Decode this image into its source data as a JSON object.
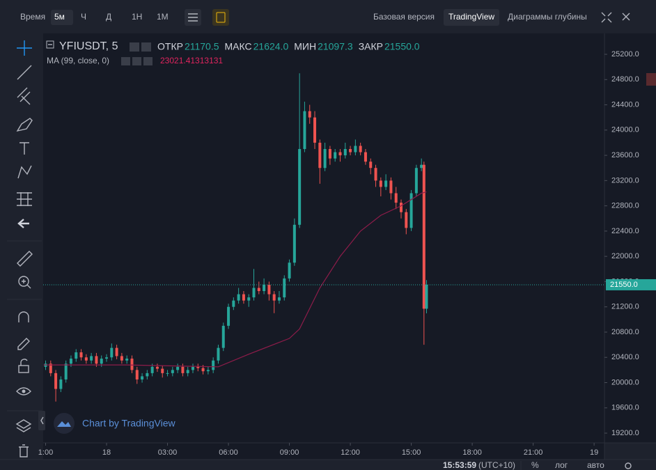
{
  "toolbar": {
    "time_label": "Время",
    "intervals": [
      "5м",
      "Ч",
      "Д",
      "1Н",
      "1М"
    ],
    "views": [
      "Базовая версия",
      "TradingView",
      "Диаграммы глубины"
    ]
  },
  "legend": {
    "symbol": "YFIUSDT, 5",
    "ohlc": [
      {
        "label": "ОТКР",
        "value": "21170.5"
      },
      {
        "label": "МАКС",
        "value": "21624.0"
      },
      {
        "label": "МИН",
        "value": "21097.3"
      },
      {
        "label": "ЗАКР",
        "value": "21550.0"
      }
    ],
    "ma_label": "MA (99, close, 0)",
    "ma_value": "23021.41313131"
  },
  "watermark": "Chart by TradingView",
  "status": {
    "time": "15:53:59",
    "tz": "(UTC+10)",
    "percent": "%",
    "log": "лог",
    "auto": "авто"
  },
  "chart_data": {
    "type": "candlestick",
    "x": [
      21,
      21.25,
      21.5,
      21.75,
      22,
      22.25,
      22.5,
      22.75,
      23,
      23.25,
      23.5,
      23.75,
      24,
      24.25,
      24.5,
      24.75,
      25,
      25.25,
      25.5,
      25.75,
      26,
      26.25,
      26.5,
      26.75,
      27,
      27.25,
      27.5,
      27.75,
      28,
      28.25,
      28.5,
      28.75,
      29,
      29.25,
      29.5,
      29.75,
      30,
      30.25,
      30.5,
      30.75,
      31,
      31.25,
      31.5,
      31.75,
      32,
      32.25,
      32.5,
      32.75,
      33,
      33.25,
      33.5,
      33.75,
      34,
      34.25,
      34.5,
      34.75,
      35,
      35.25,
      35.5,
      35.75,
      36,
      36.25,
      36.5,
      36.75,
      37,
      37.25,
      37.5,
      37.75,
      38,
      38.25,
      38.5,
      38.75,
      39,
      39.25,
      39.5,
      39.625,
      39.75
    ],
    "open": [
      20250,
      20300,
      20150,
      19900,
      20050,
      20300,
      20380,
      20480,
      20400,
      20350,
      20420,
      20300,
      20380,
      20400,
      20550,
      20420,
      20350,
      20380,
      20200,
      20050,
      20100,
      20150,
      20250,
      20220,
      20150,
      20150,
      20200,
      20250,
      20150,
      20200,
      20250,
      20230,
      20180,
      20200,
      20350,
      20550,
      20900,
      21200,
      21300,
      21400,
      21300,
      21350,
      21500,
      21450,
      21550,
      21400,
      21300,
      21350,
      21650,
      21900,
      22500,
      23700,
      24300,
      24200,
      23800,
      23400,
      23700,
      23550,
      23650,
      23600,
      23700,
      23650,
      23750,
      23650,
      23500,
      23400,
      23200,
      23100,
      23200,
      23000,
      22850,
      22700,
      22450,
      23000,
      23400,
      23450,
      21170.5
    ],
    "high": [
      20350,
      20350,
      20200,
      20100,
      20350,
      20430,
      20530,
      20530,
      20450,
      20470,
      20470,
      20430,
      20450,
      20620,
      20600,
      20470,
      20430,
      20430,
      20250,
      20150,
      20200,
      20300,
      20300,
      20270,
      20200,
      20250,
      20300,
      20300,
      20250,
      20300,
      20300,
      20280,
      20250,
      20400,
      20600,
      20950,
      21250,
      21350,
      21500,
      21450,
      21400,
      21800,
      21600,
      21650,
      21600,
      21450,
      21450,
      21700,
      21950,
      22600,
      24900,
      24450,
      24400,
      24300,
      23850,
      23800,
      23750,
      23700,
      23700,
      23800,
      23750,
      23850,
      23800,
      23700,
      23550,
      23450,
      23250,
      23300,
      23250,
      23100,
      22900,
      22750,
      23050,
      23450,
      23550,
      23500,
      21624
    ],
    "low": [
      20200,
      20100,
      19700,
      19850,
      20000,
      20250,
      20330,
      20350,
      20300,
      20300,
      20250,
      20250,
      20330,
      20350,
      20370,
      20300,
      20300,
      20150,
      19980,
      20000,
      20050,
      20100,
      20170,
      20080,
      20100,
      20100,
      20150,
      20100,
      20100,
      20150,
      20180,
      20130,
      20130,
      20150,
      20300,
      20500,
      20850,
      21150,
      21250,
      21250,
      21200,
      21300,
      21400,
      21400,
      21300,
      21100,
      21250,
      21300,
      21600,
      21850,
      22450,
      23650,
      24100,
      23700,
      23150,
      23350,
      23450,
      23500,
      23500,
      23550,
      23600,
      23600,
      23600,
      23450,
      23300,
      23100,
      22950,
      23050,
      22900,
      22750,
      22600,
      22350,
      22400,
      22950,
      23350,
      20600,
      21097.3
    ],
    "close": [
      20300,
      20150,
      19900,
      20050,
      20300,
      20380,
      20480,
      20400,
      20350,
      20420,
      20300,
      20380,
      20400,
      20550,
      20420,
      20350,
      20380,
      20200,
      20050,
      20100,
      20150,
      20250,
      20220,
      20150,
      20150,
      20200,
      20250,
      20150,
      20200,
      20250,
      20230,
      20180,
      20200,
      20350,
      20550,
      20900,
      21200,
      21300,
      21400,
      21300,
      21350,
      21500,
      21450,
      21550,
      21400,
      21300,
      21350,
      21650,
      21900,
      22500,
      23700,
      24300,
      24200,
      23800,
      23400,
      23700,
      23550,
      23650,
      23600,
      23700,
      23650,
      23750,
      23650,
      23500,
      23400,
      23200,
      23100,
      23200,
      23000,
      22850,
      22700,
      22450,
      23000,
      23400,
      23450,
      21170.5,
      21550
    ],
    "up_color": "#26a69a",
    "down_color": "#ef5350",
    "ma": {
      "name": "MA (99, close, 0)",
      "color": "#8e1c4a",
      "x": [
        20.9,
        25,
        29.5,
        31,
        33,
        33.5,
        34.5,
        35.5,
        36.5,
        37.5,
        38.5,
        39,
        39.5,
        39.75
      ],
      "values": [
        20280,
        20280,
        20250,
        20450,
        20700,
        20850,
        21500,
        22000,
        22400,
        22650,
        22800,
        22900,
        23000,
        23021.41313131
      ]
    },
    "last_price": {
      "value": 21550,
      "label": "21550.0"
    },
    "xlim": [
      20.88,
      48.51
    ],
    "ylim": [
      19046,
      25531
    ],
    "xticks": [
      {
        "value": 21,
        "label": "1:00"
      },
      {
        "value": 24,
        "label": "18"
      },
      {
        "value": 27,
        "label": "03:00"
      },
      {
        "value": 30,
        "label": "06:00"
      },
      {
        "value": 33,
        "label": "09:00"
      },
      {
        "value": 36,
        "label": "12:00"
      },
      {
        "value": 39,
        "label": "15:00"
      },
      {
        "value": 42,
        "label": "18:00"
      },
      {
        "value": 45,
        "label": "21:00"
      },
      {
        "value": 48,
        "label": "19"
      }
    ],
    "yticks": [
      {
        "value": 19200,
        "label": "19200.0"
      },
      {
        "value": 19600,
        "label": "19600.0"
      },
      {
        "value": 20000,
        "label": "20000.0"
      },
      {
        "value": 20400,
        "label": "20400.0"
      },
      {
        "value": 20800,
        "label": "20800.0"
      },
      {
        "value": 21200,
        "label": "21200.0"
      },
      {
        "value": 21600,
        "label": "21600.0"
      },
      {
        "value": 22000,
        "label": "22000.0"
      },
      {
        "value": 22400,
        "label": "22400.0"
      },
      {
        "value": 22800,
        "label": "22800.0"
      },
      {
        "value": 23200,
        "label": "23200.0"
      },
      {
        "value": 23600,
        "label": "23600.0"
      },
      {
        "value": 24000,
        "label": "24000.0"
      },
      {
        "value": 24400,
        "label": "24400.0"
      },
      {
        "value": 24800,
        "label": "24800.0"
      },
      {
        "value": 25200,
        "label": "25200.0"
      }
    ]
  }
}
